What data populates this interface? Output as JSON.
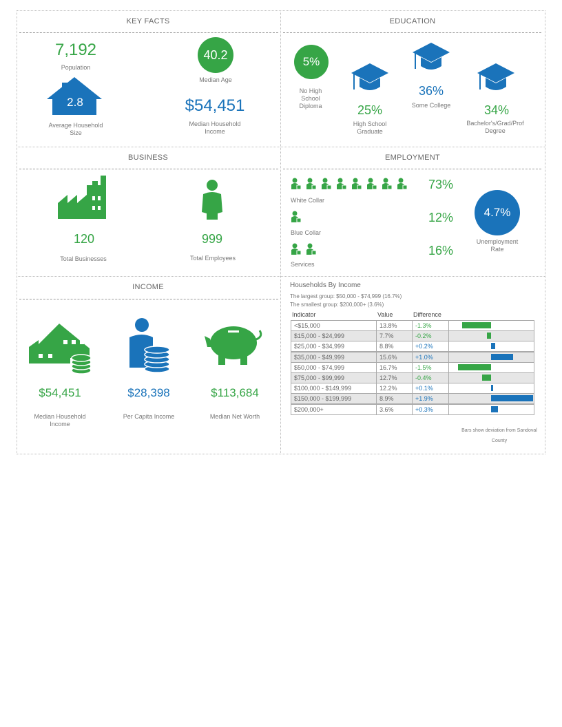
{
  "key_facts": {
    "title": "KEY FACTS",
    "population": {
      "value": "7,192",
      "label": "Population"
    },
    "median_age": {
      "value": "40.2",
      "label": "Median Age"
    },
    "household_size": {
      "value": "2.8",
      "label": "Average Household Size"
    },
    "median_household_income": {
      "value": "$54,451",
      "label": "Median Household Income"
    }
  },
  "education": {
    "title": "EDUCATION",
    "items": [
      {
        "value": "5%",
        "label": "No High School Diploma"
      },
      {
        "value": "25%",
        "label": "High School Graduate"
      },
      {
        "value": "36%",
        "label": "Some College"
      },
      {
        "value": "34%",
        "label": "Bachelor's/Grad/Prof Degree"
      }
    ]
  },
  "business": {
    "title": "BUSINESS",
    "items": [
      {
        "value": "120",
        "label": "Total Businesses"
      },
      {
        "value": "999",
        "label": "Total Employees"
      }
    ]
  },
  "employment": {
    "title": "EMPLOYMENT",
    "rows": [
      {
        "label": "White Collar",
        "value": "73%"
      },
      {
        "label": "Blue Collar",
        "value": "12%"
      },
      {
        "label": "Services",
        "value": "16%"
      }
    ],
    "unemployment": {
      "value": "4.7%",
      "label": "Unemployment Rate"
    }
  },
  "income": {
    "title": "INCOME",
    "items": [
      {
        "value": "$54,451",
        "label": "Median Household Income"
      },
      {
        "value": "$28,398",
        "label": "Per Capita Income"
      },
      {
        "value": "$113,684",
        "label": "Median Net Worth"
      }
    ]
  },
  "households_by_income": {
    "title": "Households By Income",
    "largest": "The largest group: $50,000 - $74,999 (16.7%)",
    "smallest": "The smallest group: $200,000+ (3.6%)",
    "columns": [
      "Indicator",
      "Value",
      "Difference"
    ],
    "indicators": [
      "<$15,000",
      "$15,000 - $24,999",
      "$25,000 - $34,999",
      "$35,000 - $49,999",
      "$50,000 - $74,999",
      "$75,000 - $99,999",
      "$100,000 - $149,999",
      "$150,000 - $199,999",
      "$200,000+"
    ],
    "values": [
      "13.8%",
      "7.7%",
      "8.8%",
      "15.6%",
      "16.7%",
      "12.7%",
      "12.2%",
      "8.9%",
      "3.6%"
    ],
    "difference": [
      -1.3,
      -0.2,
      0.2,
      1.0,
      -1.5,
      -0.4,
      0.1,
      1.9,
      0.3
    ],
    "difference_labels": [
      "-1.3%",
      "-0.2%",
      "+0.2%",
      "+1.0%",
      "-1.5%",
      "-0.4%",
      "+0.1%",
      "+1.9%",
      "+0.3%"
    ],
    "note": "Bars show deviation from Sandoval County"
  }
}
